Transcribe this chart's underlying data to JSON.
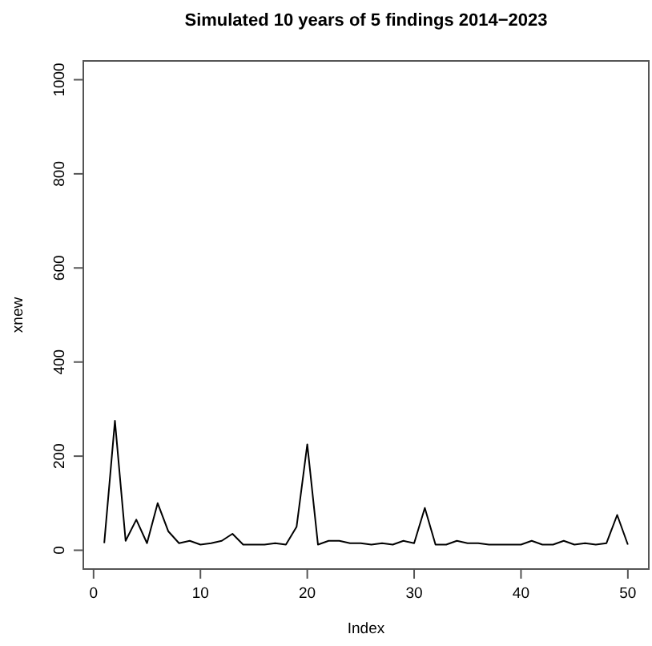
{
  "chart_data": {
    "type": "line",
    "title": "Simulated 10 years of 5 findings 2014−2023",
    "xlabel": "Index",
    "ylabel": "xnew",
    "x": [
      1,
      2,
      3,
      4,
      5,
      6,
      7,
      8,
      9,
      10,
      11,
      12,
      13,
      14,
      15,
      16,
      17,
      18,
      19,
      20,
      21,
      22,
      23,
      24,
      25,
      26,
      27,
      28,
      29,
      30,
      31,
      32,
      33,
      34,
      35,
      36,
      37,
      38,
      39,
      40,
      41,
      42,
      43,
      44,
      45,
      46,
      47,
      48,
      49,
      50
    ],
    "series": [
      {
        "color": "#000000",
        "values": [
          15,
          275,
          20,
          65,
          15,
          100,
          40,
          15,
          20,
          12,
          15,
          20,
          35,
          12,
          12,
          12,
          15,
          12,
          50,
          225,
          12,
          20,
          20,
          15,
          15,
          12,
          15,
          12,
          20,
          15,
          90,
          12,
          12,
          20,
          15,
          15,
          12,
          12,
          12,
          12,
          20,
          12,
          12,
          20,
          12,
          15,
          12,
          15,
          75,
          12
        ]
      }
    ],
    "xlim": [
      -0.96,
      51.96
    ],
    "ylim": [
      -40,
      1040
    ],
    "xticks": [
      0,
      10,
      20,
      30,
      40,
      50
    ],
    "yticks": [
      0,
      200,
      400,
      600,
      800,
      1000
    ],
    "grid": false,
    "marker": "none",
    "line_style": "solid"
  }
}
